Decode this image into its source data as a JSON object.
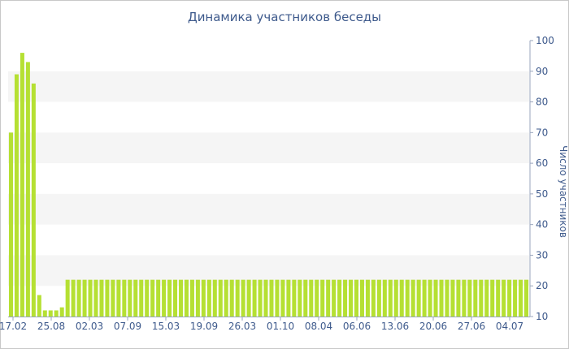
{
  "chart_data": {
    "type": "bar",
    "title": "Динамика участников беседы",
    "ylabel": "Число участников",
    "ylim": [
      10,
      100
    ],
    "yticks": [
      10,
      20,
      30,
      40,
      50,
      60,
      70,
      80,
      90,
      100
    ],
    "axis_position": "right",
    "bar_color": "#b5e033",
    "band_color": "#f5f5f5",
    "text_color": "#3e5a8c",
    "xtick_labels": [
      "17.02",
      "25.08",
      "02.03",
      "07.09",
      "15.03",
      "19.09",
      "26.03",
      "01.10",
      "08.04",
      "06.06",
      "13.06",
      "20.06",
      "27.06",
      "04.07"
    ],
    "values": [
      70,
      89,
      96,
      93,
      86,
      17,
      12,
      12,
      12,
      13,
      22,
      22,
      22,
      22,
      22,
      22,
      22,
      22,
      22,
      22,
      22,
      22,
      22,
      22,
      22,
      22,
      22,
      22,
      22,
      22,
      22,
      22,
      22,
      22,
      22,
      22,
      22,
      22,
      22,
      22,
      22,
      22,
      22,
      22,
      22,
      22,
      22,
      22,
      22,
      22,
      22,
      22,
      22,
      22,
      22,
      22,
      22,
      22,
      22,
      22,
      22,
      22,
      22,
      22,
      22,
      22,
      22,
      22,
      22,
      22,
      22,
      22,
      22,
      22,
      22,
      22,
      22,
      22,
      22,
      22,
      22,
      22,
      22,
      22,
      22,
      22,
      22,
      22,
      22,
      22,
      22,
      22
    ]
  }
}
